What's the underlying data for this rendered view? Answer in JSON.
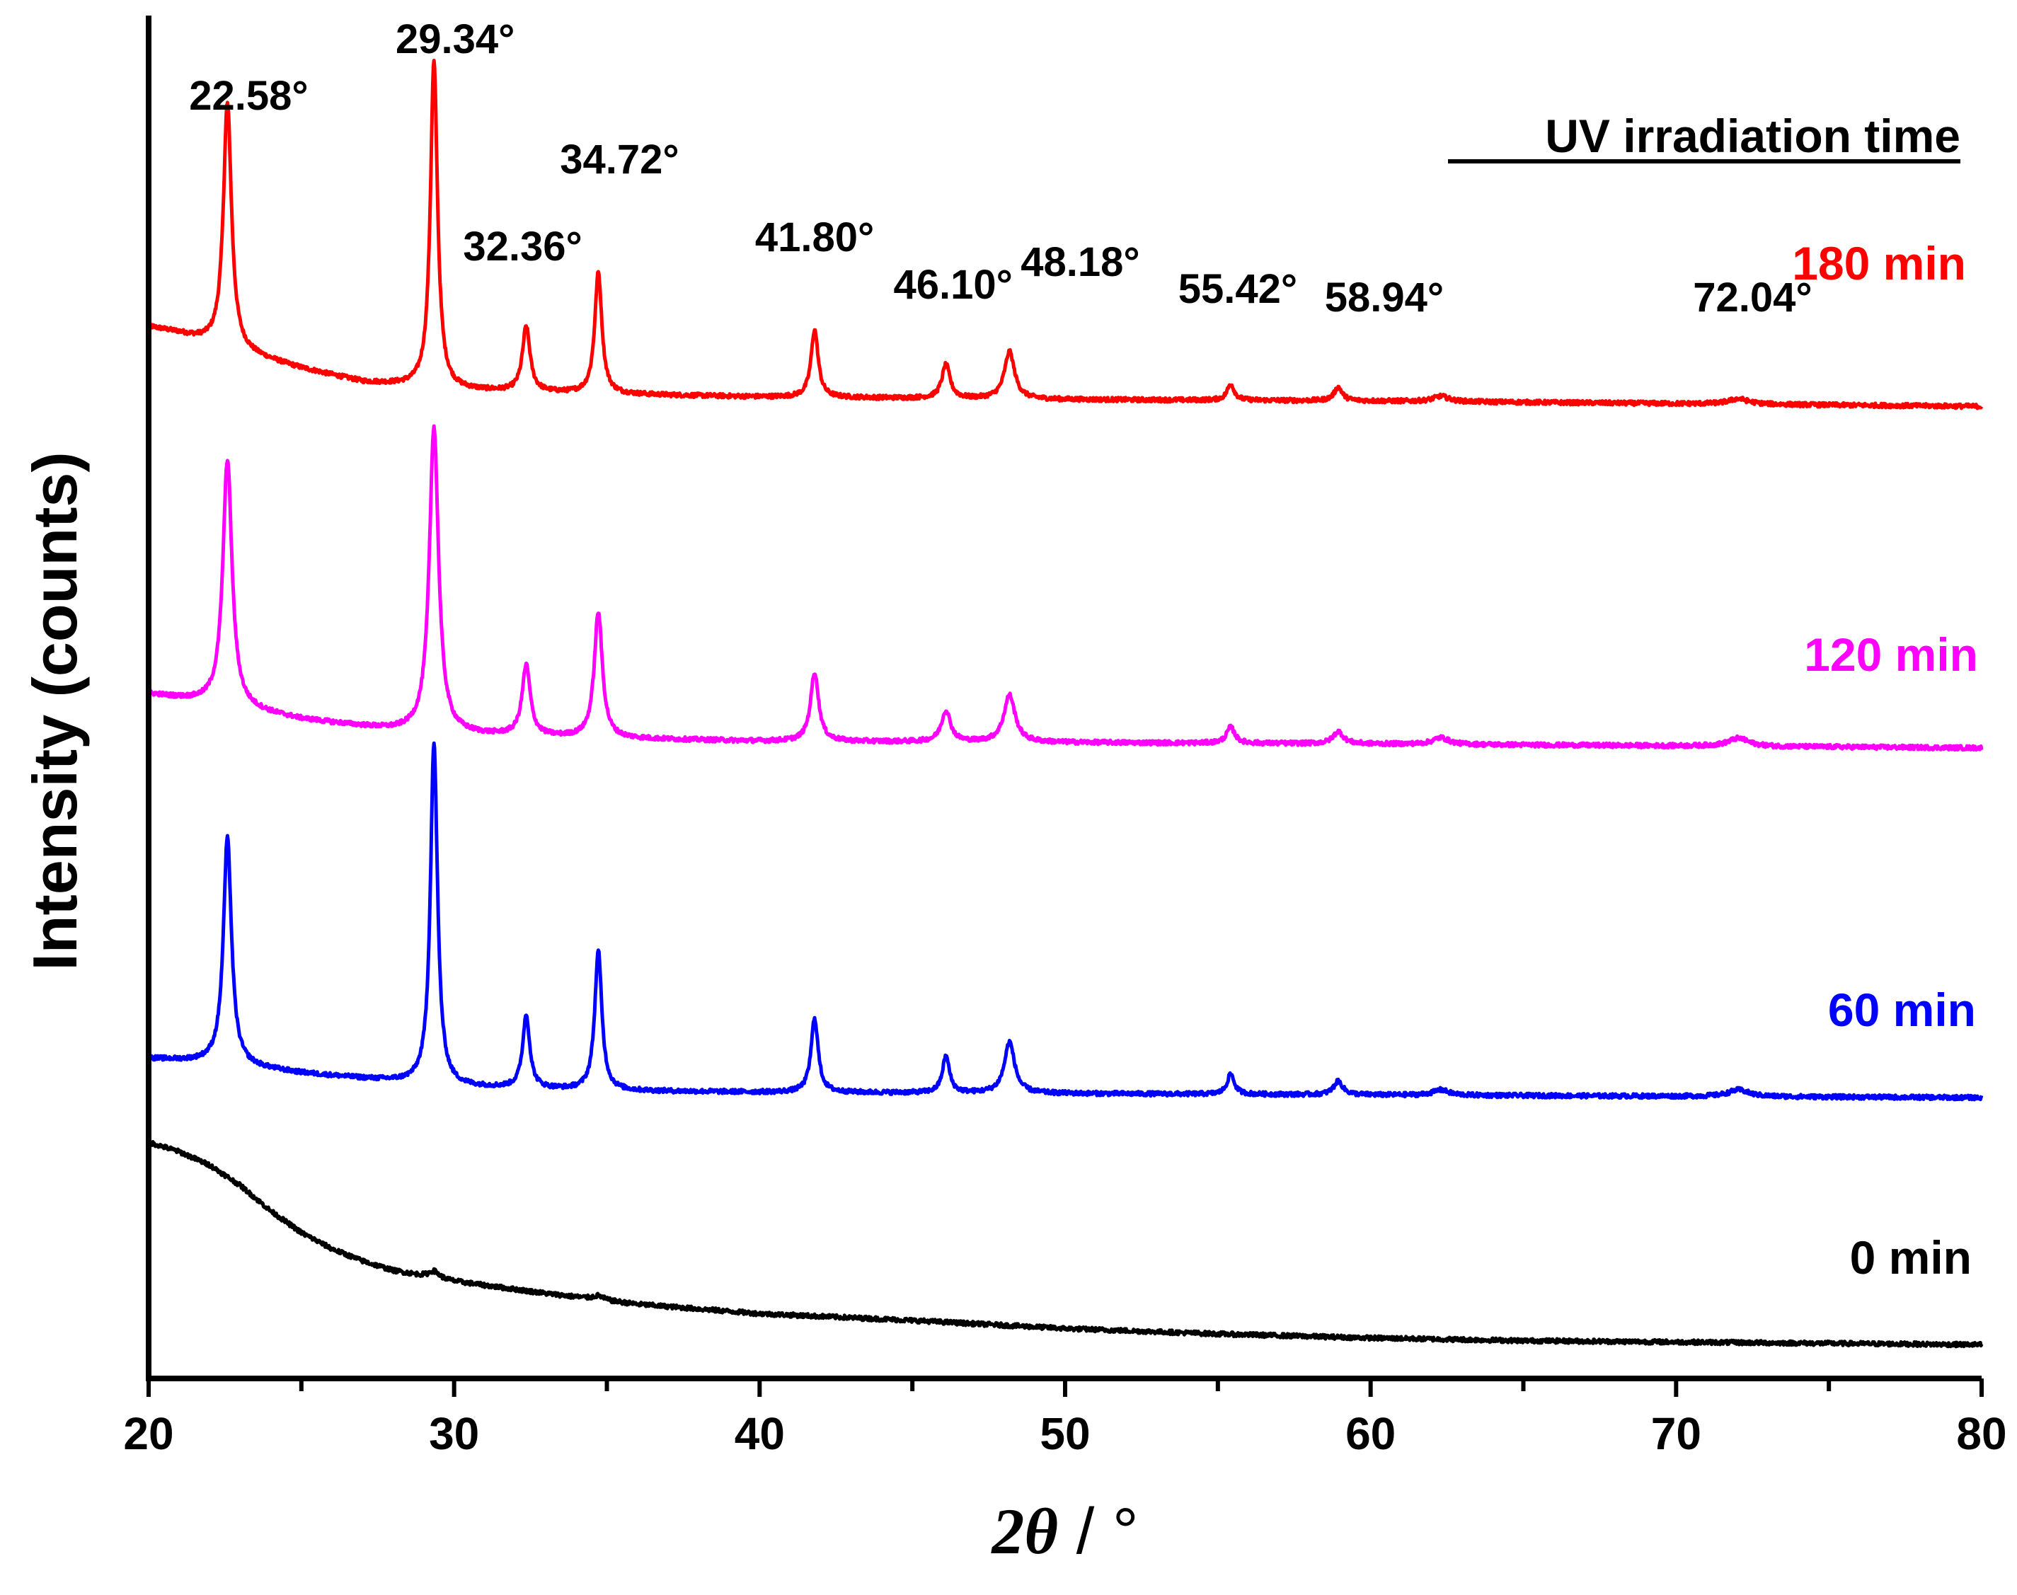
{
  "chart_data": {
    "type": "line",
    "title": "",
    "xlabel_prefix": "2θ",
    "xlabel_suffix": " / °",
    "ylabel": "Intensity (counts)",
    "xlim": [
      20,
      80
    ],
    "ylim": [
      0,
      1000
    ],
    "x_ticks": [
      "20",
      "30",
      "40",
      "50",
      "60",
      "70",
      "80"
    ],
    "legend_title": "UV irradiation time",
    "y_tick_labels_shown": false,
    "peaks": [
      {
        "pos": 22.58,
        "label": "22.58°"
      },
      {
        "pos": 29.34,
        "label": "29.34°"
      },
      {
        "pos": 32.36,
        "label": "32.36°"
      },
      {
        "pos": 34.72,
        "label": "34.72°"
      },
      {
        "pos": 41.8,
        "label": "41.80°"
      },
      {
        "pos": 46.1,
        "label": "46.10°"
      },
      {
        "pos": 48.18,
        "label": "48.18°"
      },
      {
        "pos": 55.42,
        "label": "55.42°"
      },
      {
        "pos": 58.94,
        "label": "58.94°"
      },
      {
        "pos": 72.04,
        "label": "72.04°"
      }
    ],
    "series": [
      {
        "name": "180 min",
        "color": "#ff0000",
        "baseline": [
          [
            20,
            779
          ],
          [
            21,
            774
          ],
          [
            23,
            760
          ],
          [
            25,
            748
          ],
          [
            27,
            738
          ],
          [
            30,
            732
          ],
          [
            35,
            729
          ],
          [
            40,
            727
          ],
          [
            50,
            725
          ],
          [
            60,
            724
          ],
          [
            80,
            720
          ]
        ],
        "peaks": [
          [
            22.58,
            182,
            0.16
          ],
          [
            29.34,
            242,
            0.14
          ],
          [
            32.36,
            48,
            0.15
          ],
          [
            34.72,
            90,
            0.14
          ],
          [
            41.8,
            50,
            0.14
          ],
          [
            46.1,
            25,
            0.16
          ],
          [
            48.18,
            35,
            0.2
          ],
          [
            55.42,
            12,
            0.14
          ],
          [
            58.94,
            10,
            0.16
          ],
          [
            62.3,
            4,
            0.3
          ],
          [
            72.04,
            4,
            0.4
          ]
        ]
      },
      {
        "name": "120 min",
        "color": "#ff00ff",
        "baseline": [
          [
            20,
            507
          ],
          [
            22,
            500
          ],
          [
            25,
            488
          ],
          [
            28,
            480
          ],
          [
            30,
            477
          ],
          [
            35,
            474
          ],
          [
            40,
            472
          ],
          [
            50,
            471
          ],
          [
            60,
            470
          ],
          [
            80,
            467
          ]
        ],
        "peaks": [
          [
            22.58,
            183,
            0.18
          ],
          [
            29.34,
            227,
            0.18
          ],
          [
            32.36,
            52,
            0.16
          ],
          [
            34.72,
            93,
            0.16
          ],
          [
            41.8,
            51,
            0.16
          ],
          [
            46.1,
            23,
            0.18
          ],
          [
            48.18,
            35,
            0.22
          ],
          [
            55.42,
            12,
            0.16
          ],
          [
            58.94,
            9,
            0.2
          ],
          [
            62.3,
            5,
            0.3
          ],
          [
            72.04,
            6,
            0.4
          ]
        ]
      },
      {
        "name": "60 min",
        "color": "#0000ff",
        "baseline": [
          [
            20,
            237
          ],
          [
            22,
            234
          ],
          [
            25,
            226
          ],
          [
            28,
            220
          ],
          [
            30,
            216
          ],
          [
            35,
            213
          ],
          [
            40,
            212
          ],
          [
            50,
            211
          ],
          [
            60,
            210
          ],
          [
            80,
            208
          ]
        ],
        "peaks": [
          [
            22.58,
            168,
            0.16
          ],
          [
            29.34,
            253,
            0.14
          ],
          [
            32.36,
            54,
            0.14
          ],
          [
            34.72,
            103,
            0.14
          ],
          [
            41.8,
            55,
            0.14
          ],
          [
            46.1,
            27,
            0.14
          ],
          [
            48.18,
            38,
            0.2
          ],
          [
            55.42,
            15,
            0.14
          ],
          [
            58.94,
            10,
            0.18
          ],
          [
            62.3,
            4,
            0.3
          ],
          [
            72.04,
            5,
            0.4
          ]
        ]
      },
      {
        "name": "0 min",
        "color": "#000000",
        "baseline": [
          [
            20,
            175
          ],
          [
            21,
            168
          ],
          [
            22,
            158
          ],
          [
            23,
            143
          ],
          [
            24,
            124
          ],
          [
            25,
            108
          ],
          [
            26,
            96
          ],
          [
            27,
            87
          ],
          [
            28,
            80
          ],
          [
            30,
            72
          ],
          [
            33,
            63
          ],
          [
            36,
            55
          ],
          [
            40,
            48
          ],
          [
            45,
            43
          ],
          [
            50,
            37
          ],
          [
            55,
            33
          ],
          [
            60,
            30
          ],
          [
            65,
            28
          ],
          [
            70,
            27
          ],
          [
            75,
            26
          ],
          [
            80,
            25
          ]
        ],
        "peaks": [
          [
            29.34,
            5,
            0.2
          ],
          [
            34.72,
            3,
            0.2
          ]
        ]
      }
    ]
  }
}
